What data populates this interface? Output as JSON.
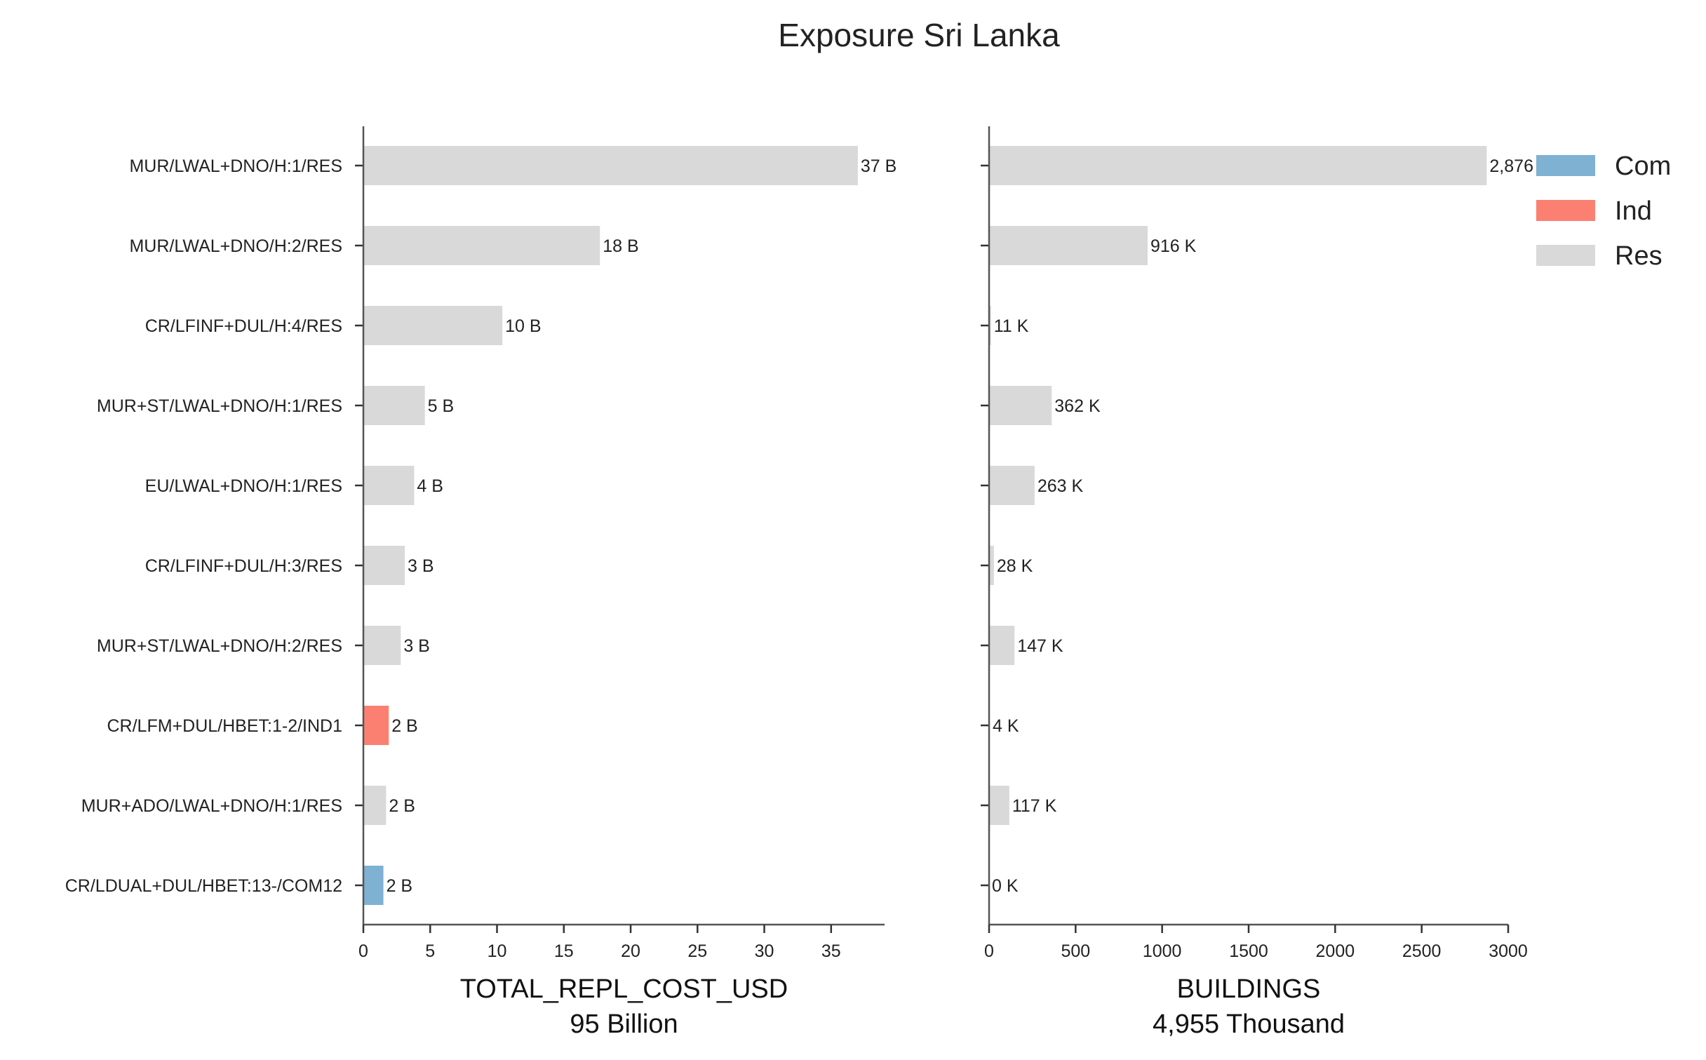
{
  "chart_data": {
    "type": "bar",
    "orientation": "horizontal",
    "title": "Exposure Sri Lanka",
    "categories": [
      "MUR/LWAL+DNO/H:1/RES",
      "MUR/LWAL+DNO/H:2/RES",
      "CR/LFINF+DUL/H:4/RES",
      "MUR+ST/LWAL+DNO/H:1/RES",
      "EU/LWAL+DNO/H:1/RES",
      "CR/LFINF+DUL/H:3/RES",
      "MUR+ST/LWAL+DNO/H:2/RES",
      "CR/LFM+DUL/HBET:1-2/IND1",
      "MUR+ADO/LWAL+DNO/H:1/RES",
      "CR/LDUAL+DUL/HBET:13-/COM12"
    ],
    "occupancy": [
      "Res",
      "Res",
      "Res",
      "Res",
      "Res",
      "Res",
      "Res",
      "Ind",
      "Res",
      "Com"
    ],
    "colors": {
      "Com": "#7fb1d3",
      "Ind": "#fb8072",
      "Res": "#d9d9d9"
    },
    "legend": {
      "position": "top-right",
      "entries": [
        "Com",
        "Ind",
        "Res"
      ]
    },
    "panels": [
      {
        "xlabel": "TOTAL_REPL_COST_USD",
        "xsublabel": "95 Billion",
        "xlim": [
          0,
          39
        ],
        "xticks": [
          "0",
          "5",
          "10",
          "15",
          "20",
          "25",
          "30",
          "35"
        ],
        "xtick_values": [
          0,
          5,
          10,
          15,
          20,
          25,
          30,
          35
        ],
        "values": [
          37.0,
          17.7,
          10.4,
          4.6,
          3.8,
          3.1,
          2.8,
          1.9,
          1.7,
          1.5
        ],
        "value_labels": [
          "37 B",
          "18 B",
          "10 B",
          "5 B",
          "4 B",
          "3 B",
          "3 B",
          "2 B",
          "2 B",
          "2 B"
        ]
      },
      {
        "xlabel": "BUILDINGS",
        "xsublabel": "4,955 Thousand",
        "xlim": [
          0,
          3000
        ],
        "xticks": [
          "0",
          "500",
          "1000",
          "1500",
          "2000",
          "2500",
          "3000"
        ],
        "xtick_values": [
          0,
          500,
          1000,
          1500,
          2000,
          2500,
          3000
        ],
        "values": [
          2876,
          916,
          11,
          362,
          263,
          28,
          147,
          4,
          117,
          0
        ],
        "value_labels": [
          "2,876 K",
          "916 K",
          "11 K",
          "362 K",
          "263 K",
          "28 K",
          "147 K",
          "4 K",
          "117 K",
          "0 K"
        ]
      }
    ]
  }
}
